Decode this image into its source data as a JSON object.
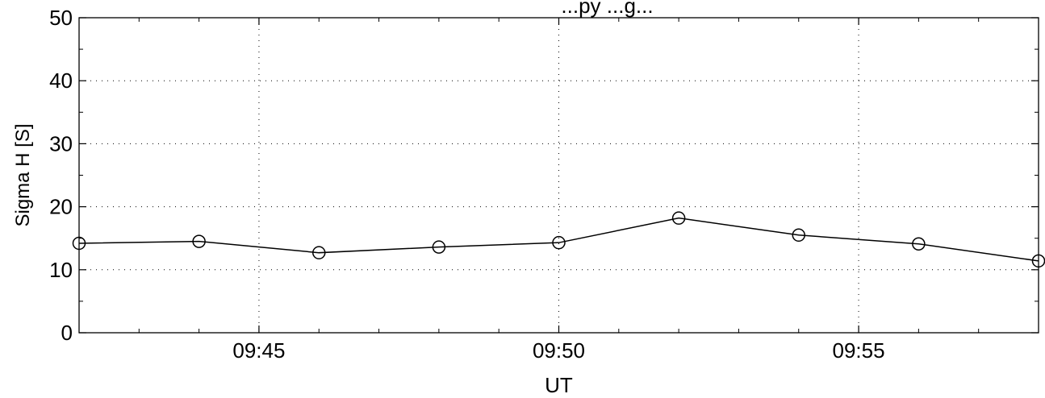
{
  "chart_data": {
    "type": "line",
    "title": "...py ...g...",
    "xlabel": "UT",
    "ylabel": "Sigma H [S]",
    "xlim": [
      "09:42",
      "09:58"
    ],
    "ylim": [
      0,
      50
    ],
    "grid": true,
    "x_ticks": [
      "09:45",
      "09:50",
      "09:55"
    ],
    "y_ticks": [
      0,
      10,
      20,
      30,
      40,
      50
    ],
    "series": [
      {
        "marker": "circle",
        "color": "#000000",
        "x": [
          "09:42",
          "09:44",
          "09:46",
          "09:48",
          "09:50",
          "09:52",
          "09:54",
          "09:56",
          "09:58"
        ],
        "y": [
          14.2,
          14.5,
          12.7,
          13.6,
          14.3,
          18.2,
          15.5,
          14.1,
          11.4
        ]
      }
    ]
  }
}
